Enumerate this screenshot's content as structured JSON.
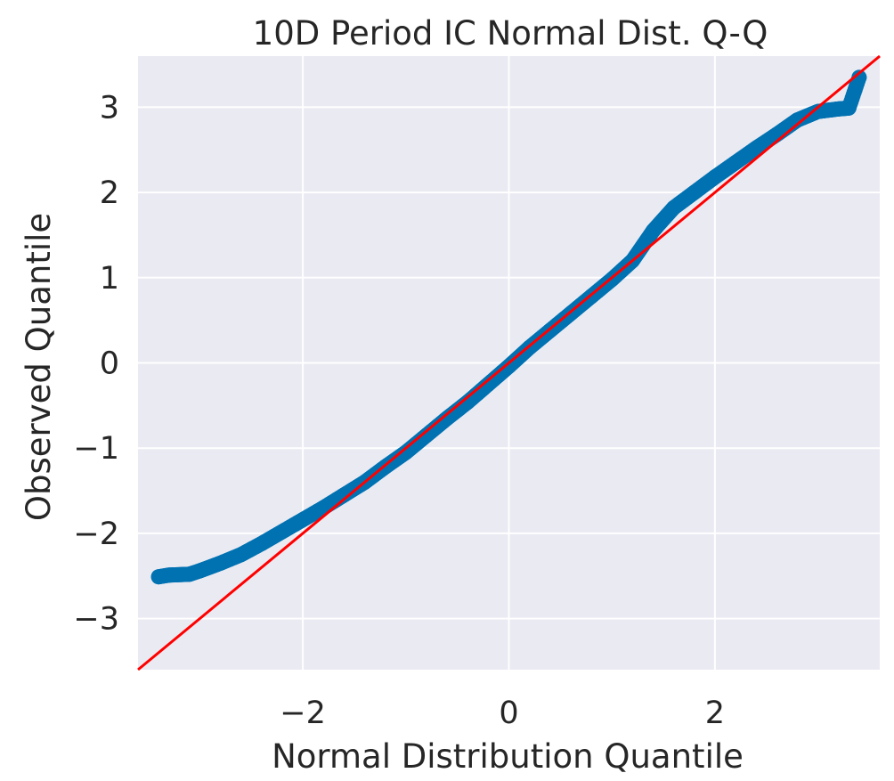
{
  "chart_data": {
    "type": "scatter",
    "title": "10D Period IC Normal Dist. Q-Q",
    "xlabel": "Normal Distribution Quantile",
    "ylabel": "Observed Quantile",
    "xlim": [
      -3.6,
      3.6
    ],
    "ylim": [
      -3.6,
      3.6
    ],
    "xticks": [
      -2,
      0,
      2
    ],
    "yticks": [
      -3,
      -2,
      -1,
      0,
      1,
      2,
      3
    ],
    "grid": true,
    "colors": {
      "points": "#0072b2",
      "reference_line": "#ff0000",
      "plot_background": "#eaeaf2",
      "grid": "#ffffff"
    },
    "reference_line": {
      "slope": 1,
      "intercept": 0
    },
    "quantile_profile": [
      [
        -3.4,
        -2.51
      ],
      [
        -3.3,
        -2.49
      ],
      [
        -3.1,
        -2.48
      ],
      [
        -3.0,
        -2.44
      ],
      [
        -2.8,
        -2.35
      ],
      [
        -2.6,
        -2.25
      ],
      [
        -2.4,
        -2.12
      ],
      [
        -2.2,
        -1.98
      ],
      [
        -2.0,
        -1.84
      ],
      [
        -1.8,
        -1.7
      ],
      [
        -1.6,
        -1.55
      ],
      [
        -1.4,
        -1.4
      ],
      [
        -1.2,
        -1.22
      ],
      [
        -1.0,
        -1.05
      ],
      [
        -0.8,
        -0.85
      ],
      [
        -0.6,
        -0.65
      ],
      [
        -0.4,
        -0.46
      ],
      [
        -0.2,
        -0.25
      ],
      [
        0.0,
        -0.04
      ],
      [
        0.2,
        0.18
      ],
      [
        0.4,
        0.38
      ],
      [
        0.6,
        0.58
      ],
      [
        0.8,
        0.78
      ],
      [
        1.0,
        0.98
      ],
      [
        1.2,
        1.2
      ],
      [
        1.4,
        1.55
      ],
      [
        1.6,
        1.82
      ],
      [
        1.8,
        2.0
      ],
      [
        2.0,
        2.18
      ],
      [
        2.2,
        2.35
      ],
      [
        2.4,
        2.52
      ],
      [
        2.6,
        2.68
      ],
      [
        2.8,
        2.85
      ],
      [
        3.0,
        2.95
      ],
      [
        3.2,
        2.98
      ],
      [
        3.3,
        2.99
      ],
      [
        3.4,
        3.35
      ]
    ]
  }
}
